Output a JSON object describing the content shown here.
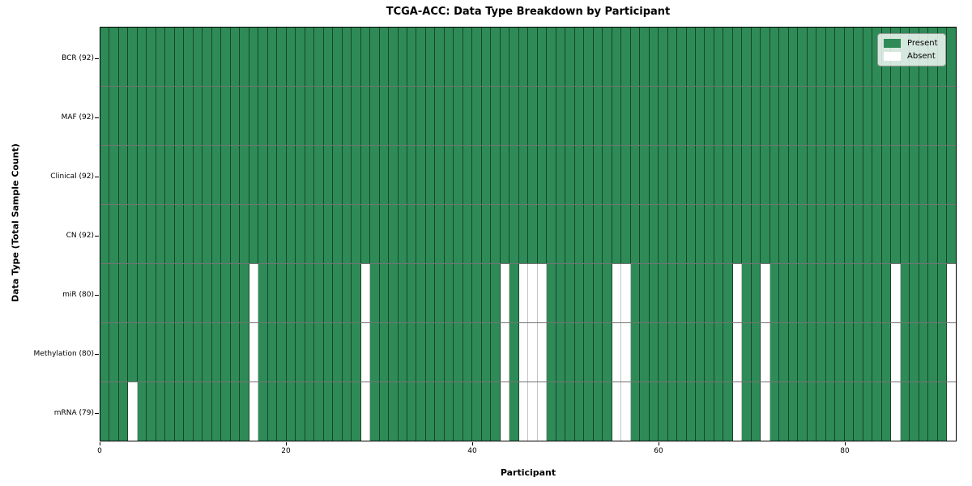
{
  "chart_data": {
    "type": "heatmap",
    "title": "TCGA-ACC: Data Type Breakdown by Participant",
    "xlabel": "Participant",
    "ylabel": "Data Type (Total Sample Count)",
    "n_participants": 92,
    "x_ticks": [
      0,
      20,
      40,
      60,
      80
    ],
    "legend_position": "upper right",
    "grid": false,
    "colors": {
      "present": "#2e8b57",
      "absent": "#ffffff",
      "present_edge": "rgba(0,0,0,0.5)",
      "absent_edge": "#c4c4c4",
      "row_separator": "rgba(0,0,0,0.55)",
      "plot_border": "#000000"
    },
    "legend": [
      {
        "key": "present",
        "label": "Present",
        "color": "#2e8b57"
      },
      {
        "key": "absent",
        "label": "Absent",
        "color": "#ffffff"
      }
    ],
    "rows": [
      {
        "key": "bcr",
        "label": "BCR (92)",
        "total_present": 92,
        "absent_participants": []
      },
      {
        "key": "maf",
        "label": "MAF (92)",
        "total_present": 92,
        "absent_participants": []
      },
      {
        "key": "clinical",
        "label": "Clinical (92)",
        "total_present": 92,
        "absent_participants": []
      },
      {
        "key": "cn",
        "label": "CN (92)",
        "total_present": 92,
        "absent_participants": []
      },
      {
        "key": "mir",
        "label": "miR (80)",
        "total_present": 80,
        "absent_participants": [
          16,
          28,
          43,
          45,
          46,
          47,
          55,
          56,
          68,
          71,
          85,
          91
        ]
      },
      {
        "key": "methylation",
        "label": "Methylation (80)",
        "total_present": 80,
        "absent_participants": [
          16,
          28,
          43,
          45,
          46,
          47,
          55,
          56,
          68,
          71,
          85,
          91
        ]
      },
      {
        "key": "mrna",
        "label": "mRNA (79)",
        "total_present": 79,
        "absent_participants": [
          3,
          16,
          28,
          43,
          45,
          46,
          47,
          55,
          56,
          68,
          71,
          85,
          91
        ]
      }
    ]
  }
}
